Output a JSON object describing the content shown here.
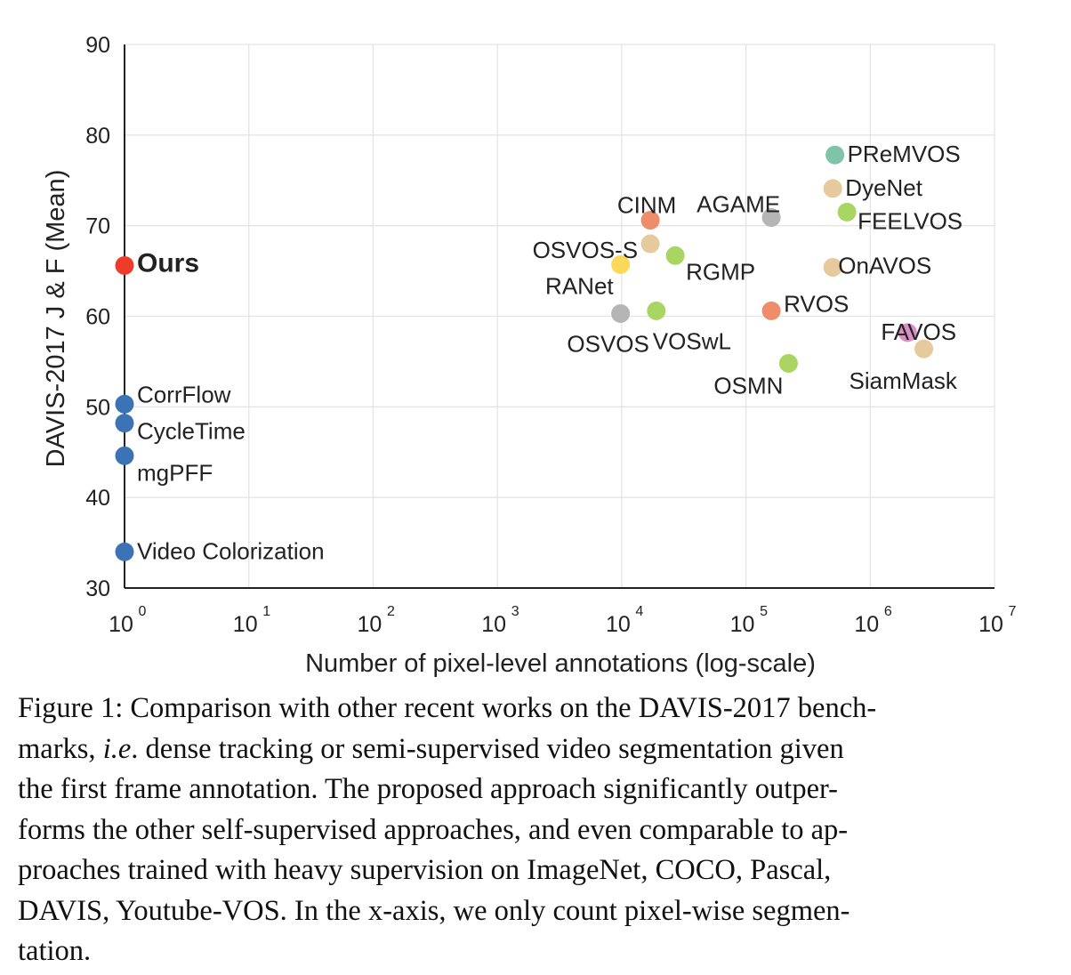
{
  "chart_data": {
    "type": "scatter",
    "xlabel": "Number of pixel-level annotations (log-scale)",
    "ylabel": "DAVIS-2017 J & F (Mean)",
    "x_scale": "log",
    "xlim": [
      1,
      10000000
    ],
    "ylim": [
      30,
      90
    ],
    "x_ticks": [
      {
        "base": "10",
        "exp": "0"
      },
      {
        "base": "10",
        "exp": "1"
      },
      {
        "base": "10",
        "exp": "2"
      },
      {
        "base": "10",
        "exp": "3"
      },
      {
        "base": "10",
        "exp": "4"
      },
      {
        "base": "10",
        "exp": "5"
      },
      {
        "base": "10",
        "exp": "6"
      },
      {
        "base": "10",
        "exp": "7"
      }
    ],
    "y_ticks": [
      "30",
      "40",
      "50",
      "60",
      "70",
      "80",
      "90"
    ],
    "grid": true,
    "points": [
      {
        "label": "Ours",
        "x": 1,
        "y": 65.6,
        "color": "#ee3b2a",
        "bold": true
      },
      {
        "label": "CorrFlow",
        "x": 1,
        "y": 50.3,
        "color": "#3b73b5"
      },
      {
        "label": "CycleTime",
        "x": 1,
        "y": 48.2,
        "color": "#3b73b5"
      },
      {
        "label": "mgPFF",
        "x": 1,
        "y": 44.6,
        "color": "#3b73b5"
      },
      {
        "label": "Video Colorization",
        "x": 1,
        "y": 34.0,
        "color": "#3b73b5"
      },
      {
        "label": "PReMVOS",
        "x": 520000,
        "y": 77.8,
        "color": "#7fc3a9"
      },
      {
        "label": "DyeNet",
        "x": 500000,
        "y": 74.1,
        "color": "#e6c99c"
      },
      {
        "label": "FEELVOS",
        "x": 650000,
        "y": 71.5,
        "color": "#a9d662"
      },
      {
        "label": "AGAME",
        "x": 160000,
        "y": 70.9,
        "color": "#b5b5b5"
      },
      {
        "label": "CINM",
        "x": 17000,
        "y": 70.6,
        "color": "#ef8c6a"
      },
      {
        "label": "OSVOS-S",
        "x": 17000,
        "y": 68.0,
        "color": "#e6c99c"
      },
      {
        "label": "RGMP",
        "x": 27000,
        "y": 66.7,
        "color": "#a9d662"
      },
      {
        "label": "RANet",
        "x": 9800,
        "y": 65.7,
        "color": "#fcd95a"
      },
      {
        "label": "OnAVOS",
        "x": 500000,
        "y": 65.4,
        "color": "#e6c99c"
      },
      {
        "label": "OSVOS",
        "x": 9800,
        "y": 60.3,
        "color": "#b5b5b5"
      },
      {
        "label": "VOSwL",
        "x": 19000,
        "y": 60.6,
        "color": "#a9d662"
      },
      {
        "label": "RVOS",
        "x": 160000,
        "y": 60.6,
        "color": "#ef8c6a"
      },
      {
        "label": "FAVOS",
        "x": 2000000,
        "y": 58.2,
        "color": "#db8fc4"
      },
      {
        "label": "SiamMask",
        "x": 2700000,
        "y": 56.4,
        "color": "#e6c99c"
      },
      {
        "label": "OSMN",
        "x": 220000,
        "y": 54.8,
        "color": "#a9d662"
      }
    ]
  },
  "caption": {
    "l1": "Figure 1: Comparison with other recent works on the DAVIS-2017 bench-",
    "l2_pre": "marks, ",
    "l2_em": "i.e",
    "l2_post": ". dense tracking or semi-supervised video segmentation given",
    "l3": "the first frame annotation.  The proposed approach significantly outper-",
    "l4": "forms the other self-supervised approaches, and even comparable to ap-",
    "l5": "proaches trained with heavy supervision on ImageNet, COCO, Pascal,",
    "l6": "DAVIS, Youtube-VOS. In the x-axis, we only count pixel-wise segmen-",
    "l7": "tation."
  }
}
